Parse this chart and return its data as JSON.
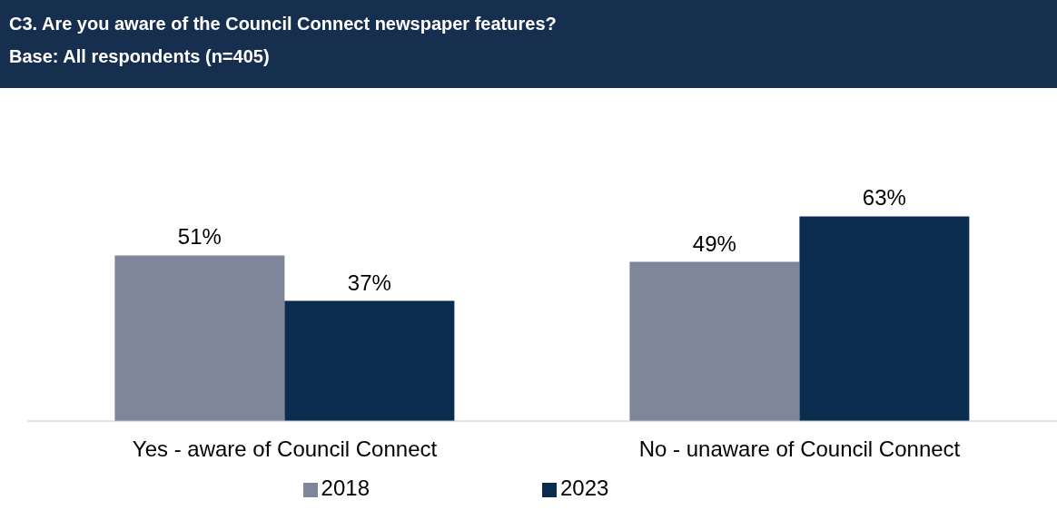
{
  "chart_data": {
    "type": "bar",
    "title": "C3. Are you aware of the Council Connect newspaper features?",
    "subtitle": "Base: All respondents (n=405)",
    "categories": [
      "Yes - aware of Council Connect",
      "No - unaware of Council Connect"
    ],
    "series": [
      {
        "name": "2018",
        "color": "#808699",
        "values": [
          51,
          49
        ],
        "value_labels": [
          "51%",
          "49%"
        ]
      },
      {
        "name": "2023",
        "color": "#0a2d4f",
        "values": [
          37,
          63
        ],
        "value_labels": [
          "37%",
          "63%"
        ]
      }
    ],
    "legend": "bottom",
    "grid": false
  }
}
